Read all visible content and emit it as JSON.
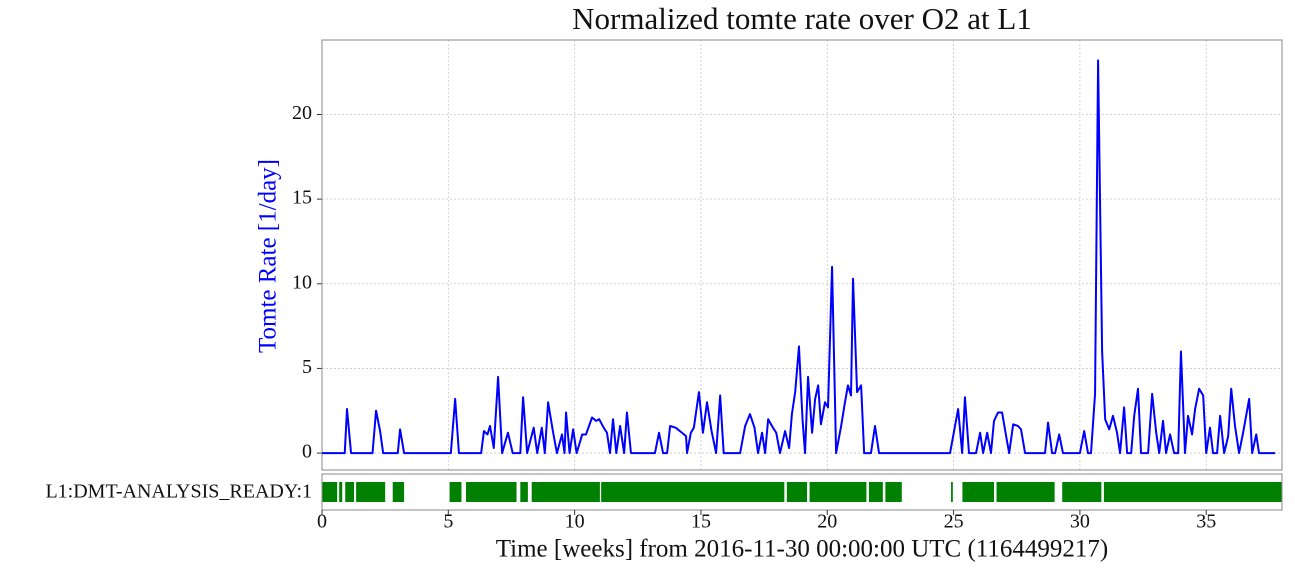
{
  "chart_data": [
    {
      "type": "line",
      "title": "Normalized tomte rate over O2 at L1",
      "ylabel": "Tomte Rate [1/day]",
      "ylabel_color": "#0000ff",
      "grid": true,
      "xlim": [
        0,
        38
      ],
      "ylim": [
        -1,
        24.4
      ],
      "yticks": [
        0,
        5,
        10,
        15,
        20
      ],
      "x": [
        0,
        0.9,
        0.99,
        1.15,
        2.0,
        2.14,
        2.3,
        2.42,
        3.0,
        3.09,
        3.25,
        5.1,
        5.27,
        5.42,
        6.3,
        6.41,
        6.55,
        6.65,
        6.8,
        6.97,
        7.13,
        7.36,
        7.55,
        7.85,
        7.96,
        8.12,
        8.38,
        8.52,
        8.7,
        8.82,
        8.95,
        9.15,
        9.3,
        9.5,
        9.6,
        9.66,
        9.8,
        9.94,
        10.08,
        10.3,
        10.45,
        10.69,
        10.85,
        10.97,
        11.15,
        11.28,
        11.4,
        11.52,
        11.65,
        11.8,
        11.96,
        12.07,
        12.23,
        13.18,
        13.34,
        13.5,
        13.66,
        13.78,
        14.0,
        14.25,
        14.41,
        14.45,
        14.6,
        14.72,
        14.92,
        15.08,
        15.24,
        15.42,
        15.6,
        15.76,
        15.9,
        16.55,
        16.75,
        16.94,
        17.12,
        17.26,
        17.42,
        17.54,
        17.66,
        17.85,
        17.98,
        18.13,
        18.33,
        18.49,
        18.6,
        18.73,
        18.88,
        19.02,
        19.12,
        19.24,
        19.4,
        19.52,
        19.64,
        19.75,
        19.91,
        20.03,
        20.19,
        20.35,
        20.55,
        20.7,
        20.82,
        20.94,
        21.02,
        21.18,
        21.34,
        21.46,
        21.73,
        21.89,
        22.05,
        24.86,
        25.18,
        25.34,
        25.45,
        25.61,
        25.89,
        26.05,
        26.17,
        26.33,
        26.48,
        26.6,
        26.76,
        26.92,
        27.08,
        27.2,
        27.36,
        27.55,
        27.67,
        27.83,
        28.62,
        28.74,
        28.9,
        29.02,
        29.18,
        29.33,
        30.0,
        30.17,
        30.32,
        30.44,
        30.6,
        30.72,
        30.88,
        31.0,
        31.16,
        31.31,
        31.47,
        31.59,
        31.75,
        31.87,
        32.03,
        32.15,
        32.3,
        32.42,
        32.7,
        32.86,
        33.02,
        33.14,
        33.29,
        33.41,
        33.57,
        33.73,
        33.89,
        34.0,
        34.16,
        34.28,
        34.44,
        34.56,
        34.72,
        34.88,
        35.0,
        35.15,
        35.27,
        35.43,
        35.55,
        35.71,
        35.87,
        35.99,
        36.14,
        36.3,
        36.46,
        36.7,
        36.82,
        36.98,
        37.09,
        37.73
      ],
      "series": [
        {
          "color": "#0000ff",
          "values": [
            0,
            0,
            2.6,
            0,
            0,
            2.5,
            1.3,
            0,
            0,
            1.4,
            0,
            0,
            3.2,
            0,
            0,
            1.3,
            1.1,
            1.6,
            0.3,
            4.5,
            0,
            1.2,
            0,
            0,
            3.3,
            0,
            1.5,
            0,
            1.5,
            0,
            3.0,
            1.2,
            0,
            1.1,
            0,
            2.4,
            0,
            1.4,
            0,
            1.1,
            1.1,
            2.1,
            1.9,
            2.0,
            1.5,
            1.2,
            0,
            2.0,
            0,
            1.6,
            0,
            2.4,
            0,
            0,
            1.2,
            0,
            0,
            1.6,
            1.5,
            1.2,
            1.0,
            0,
            1.2,
            1.5,
            3.6,
            1.2,
            3.0,
            1.3,
            0,
            3.4,
            0,
            0,
            1.6,
            2.3,
            1.5,
            0,
            1.2,
            0,
            2.0,
            1.5,
            1.2,
            0,
            1.3,
            0.3,
            2.3,
            3.6,
            6.3,
            2.0,
            0,
            4.5,
            1.2,
            3.2,
            4.0,
            1.7,
            3.0,
            2.7,
            11.0,
            0,
            1.6,
            3.0,
            4.0,
            3.4,
            10.3,
            3.6,
            4.0,
            0,
            0,
            1.6,
            0,
            0,
            2.6,
            0,
            3.3,
            0,
            0,
            1.2,
            0,
            1.2,
            0,
            1.9,
            2.4,
            2.4,
            1.0,
            0,
            1.7,
            1.6,
            1.4,
            0,
            0,
            1.8,
            0,
            0,
            1.1,
            0,
            0,
            1.3,
            0,
            0,
            3.5,
            23.2,
            6.0,
            2.0,
            1.4,
            2.2,
            1.2,
            0,
            2.7,
            0,
            0,
            2.2,
            3.8,
            0,
            0,
            3.5,
            1.2,
            0,
            1.9,
            0,
            1.1,
            0,
            0,
            6.0,
            0,
            2.2,
            1.1,
            2.6,
            3.8,
            3.4,
            0,
            1.5,
            0,
            0,
            2.2,
            0,
            1.0,
            3.8,
            1.6,
            0,
            1.2,
            3.2,
            0,
            1.1,
            0,
            0
          ]
        }
      ]
    },
    {
      "type": "segments",
      "label": "L1:DMT-ANALYSIS_READY:1",
      "color": "#008000",
      "xlim": [
        0,
        38
      ],
      "xticks": [
        0,
        5,
        10,
        15,
        20,
        25,
        30,
        35
      ],
      "xlabel": "Time [weeks] from 2016-11-30 00:00:00 UTC (1164499217)",
      "segments": [
        [
          0.02,
          0.6
        ],
        [
          0.68,
          0.8
        ],
        [
          0.92,
          1.27
        ],
        [
          1.35,
          2.5
        ],
        [
          2.8,
          3.25
        ],
        [
          5.05,
          5.52
        ],
        [
          5.7,
          7.7
        ],
        [
          7.85,
          8.15
        ],
        [
          8.3,
          11.0
        ],
        [
          11.05,
          18.3
        ],
        [
          18.4,
          19.2
        ],
        [
          19.3,
          21.55
        ],
        [
          21.65,
          22.2
        ],
        [
          22.3,
          22.95
        ],
        [
          24.9,
          24.97
        ],
        [
          25.35,
          26.6
        ],
        [
          26.7,
          29.0
        ],
        [
          29.3,
          30.85
        ],
        [
          30.95,
          38
        ]
      ]
    }
  ]
}
